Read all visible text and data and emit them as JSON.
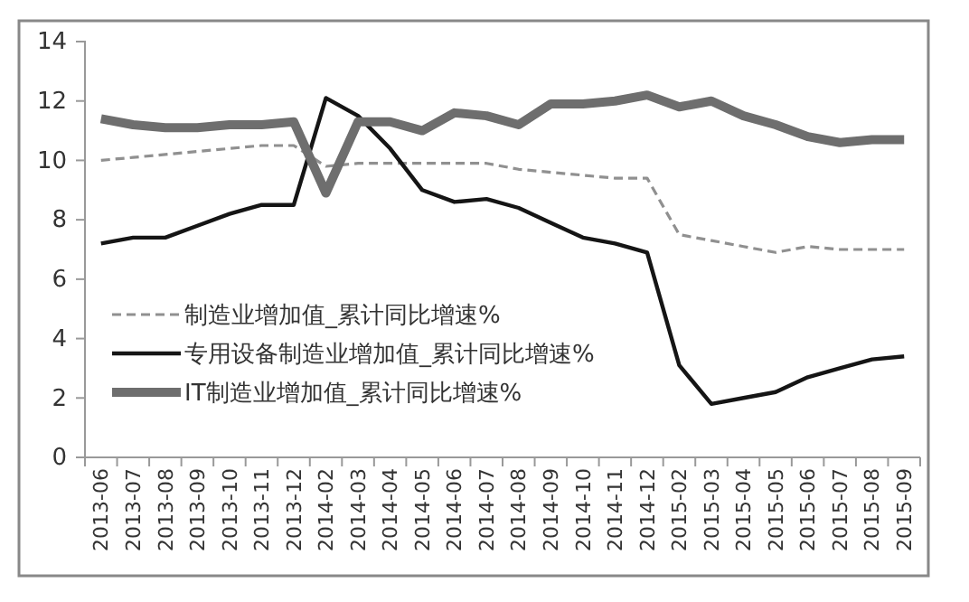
{
  "chart_data": {
    "type": "line",
    "categories": [
      "2013-06",
      "2013-07",
      "2013-08",
      "2013-09",
      "2013-10",
      "2013-11",
      "2013-12",
      "2014-02",
      "2014-03",
      "2014-04",
      "2014-05",
      "2014-06",
      "2014-07",
      "2014-08",
      "2014-09",
      "2014-10",
      "2014-11",
      "2014-12",
      "2015-02",
      "2015-03",
      "2015-04",
      "2015-05",
      "2015-06",
      "2015-07",
      "2015-08",
      "2015-09"
    ],
    "series": [
      {
        "name": "制造业增加值_累计同比增速%",
        "color": "#909090",
        "line_style": "dashed",
        "values": [
          10.0,
          10.1,
          10.2,
          10.3,
          10.4,
          10.5,
          10.5,
          9.8,
          9.9,
          9.9,
          9.9,
          9.9,
          9.9,
          9.7,
          9.6,
          9.5,
          9.4,
          9.4,
          7.5,
          7.3,
          7.1,
          6.9,
          7.1,
          7.0,
          7.0,
          7.0
        ]
      },
      {
        "name": "专用设备制造业增加值_累计同比增速%",
        "color": "#151515",
        "line_style": "solid",
        "values": [
          7.2,
          7.4,
          7.4,
          7.8,
          8.2,
          8.5,
          8.5,
          12.1,
          11.5,
          10.4,
          9.0,
          8.6,
          8.7,
          8.4,
          7.9,
          7.4,
          7.2,
          6.9,
          3.1,
          1.8,
          2.0,
          2.2,
          2.7,
          3.0,
          3.3,
          3.4
        ]
      },
      {
        "name": "IT制造业增加值_累计同比增速%",
        "color": "#6e6e6e",
        "line_style": "solid",
        "values": [
          11.4,
          11.2,
          11.1,
          11.1,
          11.2,
          11.2,
          11.3,
          8.9,
          11.3,
          11.3,
          11.0,
          11.6,
          11.5,
          11.2,
          11.9,
          11.9,
          12.0,
          12.2,
          11.8,
          12.0,
          11.5,
          11.2,
          10.8,
          10.6,
          10.7,
          10.7
        ]
      }
    ],
    "ylim": [
      0,
      14
    ],
    "yticks": [
      0,
      2,
      4,
      6,
      8,
      10,
      12,
      14
    ],
    "grid": false,
    "legend": "left",
    "marker": "none"
  }
}
